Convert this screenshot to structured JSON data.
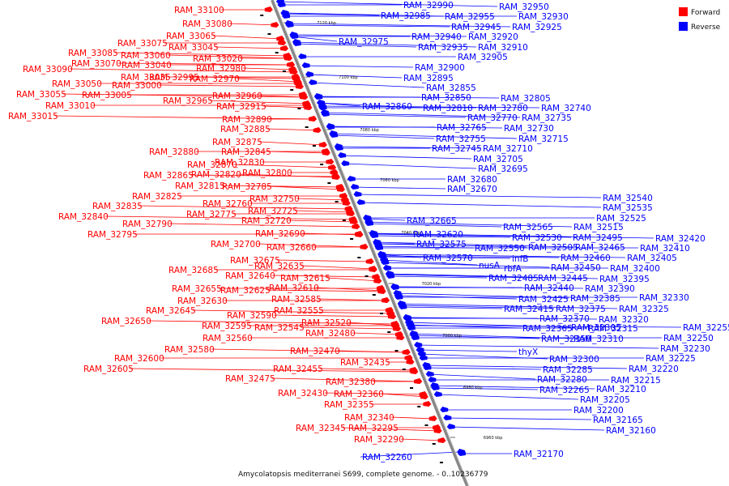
{
  "caption": "Amycolatopsis mediterranei S699, complete genome. - 0..10236779",
  "legend": [
    {
      "label": "Forward",
      "color": "#ff0000"
    },
    {
      "label": "Reverse",
      "color": "#0000ff"
    }
  ],
  "colors": {
    "forward": "#ff0000",
    "reverse": "#0000ff",
    "axis": "#888888"
  },
  "ticks": [
    "7120 kbp",
    "7100 kbp",
    "7080 kbp",
    "7060 kbp",
    "7040 kbp",
    "7020 kbp",
    "7000 kbp",
    "6980 kbp",
    "6960 kbp"
  ],
  "forward_genes": [
    "RAM_33100",
    "RAM_33080",
    "RAM_33065",
    "RAM_33075",
    "RAM_33045",
    "RAM_33085",
    "RAM_33020",
    "RAM_33070",
    "RAM_33060",
    "RAM_33040",
    "RAM_32980",
    "RAM_33090",
    "RAM_33035",
    "RAM_32995",
    "RAM_32970",
    "RAM_33050",
    "RAM_33000",
    "RAM_33055",
    "RAM_33005",
    "RAM_32960",
    "RAM_32965",
    "RAM_33010",
    "RAM_32915",
    "RAM_33015",
    "RAM_32890",
    "RAM_32885",
    "RAM_32875",
    "RAM_32880",
    "RAM_32845",
    "RAM_32870",
    "RAM_32830",
    "RAM_32865",
    "RAM_32820",
    "RAM_32800",
    "RAM_32815",
    "RAM_32785",
    "RAM_32825",
    "RAM_32750",
    "RAM_32835",
    "RAM_32760",
    "RAM_32725",
    "RAM_32840",
    "RAM_32775",
    "RAM_32720",
    "RAM_32790",
    "RAM_32795",
    "RAM_32690",
    "RAM_32700",
    "RAM_32660",
    "RAM_32675",
    "RAM_32635",
    "RAM_32685",
    "RAM_32640",
    "RAM_32615",
    "RAM_32655",
    "RAM_32625",
    "RAM_32610",
    "RAM_32630",
    "RAM_32585",
    "RAM_32645",
    "RAM_32555",
    "RAM_32590",
    "RAM_32650",
    "RAM_32595",
    "RAM_32545",
    "RAM_32520",
    "RAM_32560",
    "RAM_32480",
    "RAM_32580",
    "RAM_32600",
    "RAM_32470",
    "RAM_32605",
    "RAM_32435",
    "RAM_32455",
    "RAM_32475",
    "RAM_32380",
    "RAM_32430",
    "RAM_32360",
    "RAM_32355",
    "RAM_32340",
    "RAM_32345",
    "RAM_32295",
    "RAM_32290"
  ],
  "reverse_genes": [
    "RAM_32990",
    "RAM_32985",
    "RAM_32955",
    "RAM_32950",
    "RAM_32930",
    "RAM_32945",
    "RAM_32925",
    "RAM_32975",
    "RAM_32940",
    "RAM_32920",
    "RAM_32935",
    "RAM_32910",
    "RAM_32905",
    "RAM_32900",
    "RAM_32895",
    "RAM_32855",
    "RAM_32850",
    "RAM_32805",
    "RAM_32860",
    "RAM_32810",
    "RAM_32780",
    "RAM_32740",
    "RAM_32770",
    "RAM_32735",
    "RAM_32765",
    "RAM_32730",
    "RAM_32755",
    "RAM_32715",
    "RAM_32745",
    "RAM_32710",
    "RAM_32705",
    "RAM_32695",
    "RAM_32680",
    "RAM_32670",
    "RAM_32540",
    "RAM_32535",
    "RAM_32525",
    "RAM_32665",
    "RAM_32565",
    "RAM_32515",
    "RAM_32620",
    "RAM_32530",
    "RAM_32495",
    "RAM_32420",
    "RAM_32575",
    "RAM_32550",
    "RAM_32505",
    "RAM_32465",
    "RAM_32410",
    "infB",
    "RAM_32570",
    "nusA",
    "rbfA",
    "RAM_32460",
    "RAM_32405",
    "RAM_32450",
    "RAM_32400",
    "RAM_32485",
    "RAM_32445",
    "RAM_32395",
    "RAM_32440",
    "RAM_32390",
    "RAM_32425",
    "RAM_32385",
    "RAM_32330",
    "RAM_32415",
    "RAM_32375",
    "RAM_32325",
    "RAM_32370",
    "RAM_32320",
    "RAM_32365",
    "RAM_32305",
    "RAM_32315",
    "RAM_32255",
    "RAM_32350",
    "RAM_32310",
    "RAM_32250",
    "thyX",
    "RAM_32230",
    "RAM_32300",
    "RAM_32225",
    "RAM_32285",
    "RAM_32220",
    "RAM_32280",
    "RAM_32215",
    "RAM_32265",
    "RAM_32210",
    "RAM_32205",
    "RAM_32200",
    "RAM_32165",
    "RAM_32160",
    "RAM_32260",
    "RAM_32170"
  ]
}
